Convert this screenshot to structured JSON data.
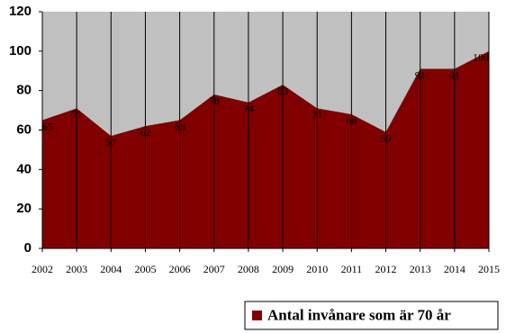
{
  "chart_data": {
    "type": "area",
    "categories": [
      "2002",
      "2003",
      "2004",
      "2005",
      "2006",
      "2007",
      "2008",
      "2009",
      "2010",
      "2011",
      "2012",
      "2013",
      "2014",
      "2015"
    ],
    "series": [
      {
        "name": "Antal invånare som är 70 år",
        "color": "#800000",
        "values": [
          65,
          71,
          57,
          62,
          65,
          78,
          74,
          83,
          71,
          68,
          59,
          91,
          91,
          100
        ]
      }
    ],
    "ylim": [
      0,
      120
    ],
    "yticks": [
      0,
      20,
      40,
      60,
      80,
      100,
      120
    ],
    "plot_background": "#c0c0c0",
    "vertical_grid": true,
    "legend": "bottom-right"
  }
}
